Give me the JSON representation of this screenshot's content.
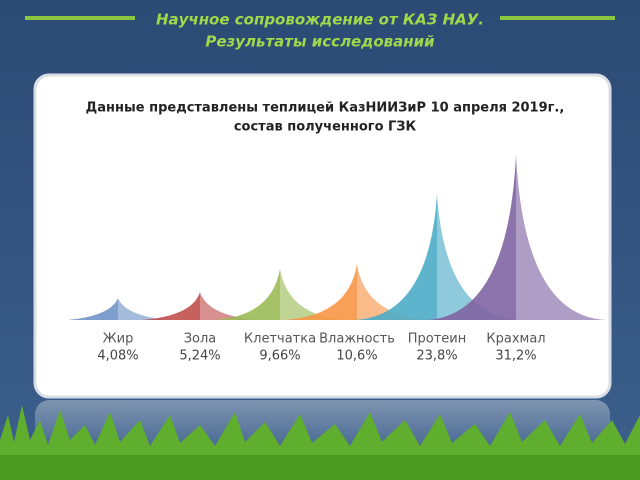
{
  "header": {
    "title_lines": [
      "Научное сопровождение от  КАЗ НАУ.",
      "Результаты исследований"
    ]
  },
  "chart_data": {
    "type": "peaks",
    "title_lines": [
      "Данные представлены теплицей КазНИИЗиР 10 апреля 2019г.,",
      "состав полученного ГЗК"
    ],
    "categories": [
      "Жир",
      "Зола",
      "Клетчатка",
      "Влажность",
      "Протеин",
      "Крахмал"
    ],
    "values": [
      4.08,
      5.24,
      9.66,
      10.6,
      23.8,
      31.2
    ],
    "value_labels": [
      "4,08%",
      "5,24%",
      "9,66%",
      "10,6%",
      "23,8%",
      "31,2%"
    ],
    "colors": [
      "#7094c8",
      "#c0504d",
      "#9bbb59",
      "#f79646",
      "#4bacc6",
      "#8064a2"
    ]
  }
}
